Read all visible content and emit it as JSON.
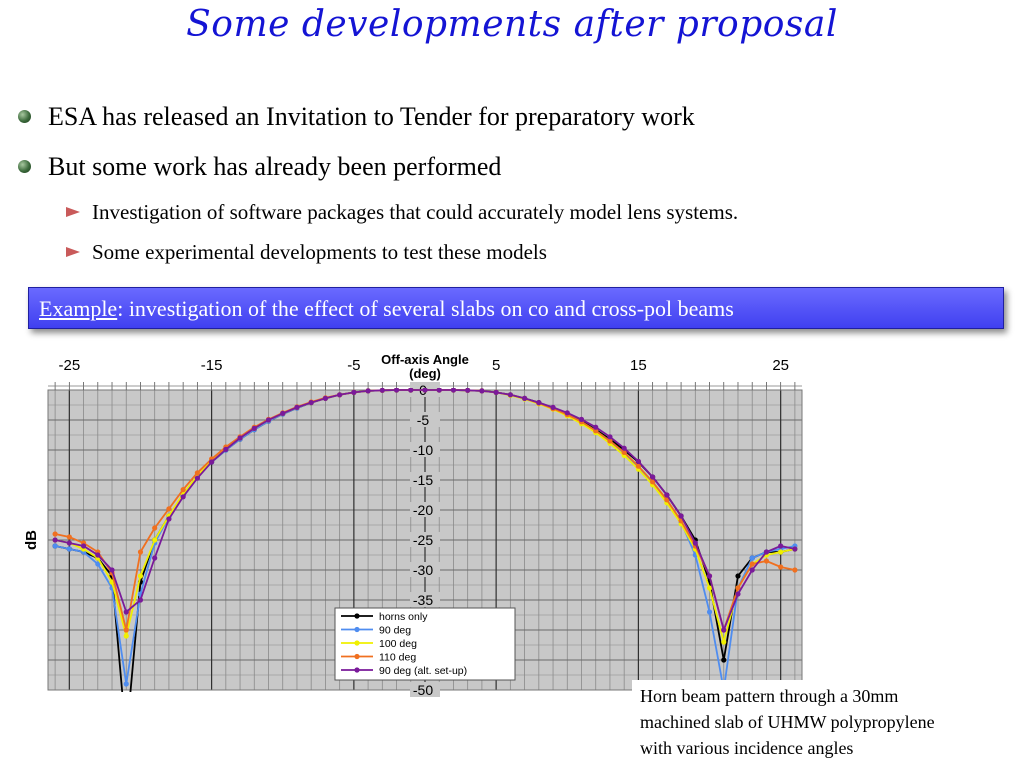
{
  "slide": {
    "title": "Some developments after proposal",
    "bullets": [
      "ESA has released an Invitation to Tender for preparatory work",
      "But some work has already been performed"
    ],
    "sub_bullets": [
      "Investigation of software packages that could accurately model lens systems.",
      "Some experimental developments to test these models"
    ],
    "example": {
      "label": "Example",
      "text": ": investigation of the effect of several slabs on co and cross-pol beams"
    },
    "caption": [
      "Horn beam pattern through a 30mm",
      "machined slab of UHMW polypropylene",
      "with various incidence angles"
    ]
  },
  "colors": {
    "title": "#1414d4",
    "example_box": "#5050f5",
    "bullet": "#3c6a3c",
    "sub_marker": "#c95a5a",
    "plot_bg": "#c8c8c8"
  },
  "chart_data": {
    "type": "line",
    "xlabel": "Off-axis Angle\n(deg)",
    "ylabel": "dB",
    "xlim": [
      -26.5,
      26.5
    ],
    "ylim": [
      -50,
      0
    ],
    "x_ticks": [
      -25,
      -15,
      -5,
      5,
      15,
      25
    ],
    "y_ticks": [
      0,
      -5,
      -10,
      -15,
      -20,
      -25,
      -30,
      -35,
      -40,
      -45,
      -50
    ],
    "grid": true,
    "legend_position": "bottom-center",
    "x": [
      -26,
      -25,
      -24,
      -23,
      -22,
      -21,
      -20,
      -19,
      -18,
      -17,
      -16,
      -15,
      -14,
      -13,
      -12,
      -11,
      -10,
      -9,
      -8,
      -7,
      -6,
      -5,
      -4,
      -3,
      -2,
      -1,
      0,
      1,
      2,
      3,
      4,
      5,
      6,
      7,
      8,
      9,
      10,
      11,
      12,
      13,
      14,
      15,
      16,
      17,
      18,
      19,
      20,
      21,
      22,
      23,
      24,
      25,
      26
    ],
    "series": [
      {
        "name": "horns only",
        "color": "#000000",
        "values": [
          -26,
          -26.5,
          -27,
          -28,
          -31,
          -58,
          -32,
          -25,
          -21,
          -17.5,
          -14.5,
          -12,
          -10,
          -8.2,
          -6.6,
          -5.2,
          -4,
          -3,
          -2.1,
          -1.4,
          -0.8,
          -0.4,
          -0.15,
          -0.05,
          0,
          0,
          0,
          0,
          0,
          -0.05,
          -0.15,
          -0.4,
          -0.8,
          -1.4,
          -2.1,
          -3,
          -4,
          -5.2,
          -6.6,
          -8.2,
          -10,
          -12,
          -14.5,
          -17.5,
          -21,
          -25,
          -32,
          -45,
          -31,
          -28,
          -27,
          -27,
          -26.5
        ]
      },
      {
        "name": "90 deg",
        "color": "#4f8df0",
        "values": [
          -26,
          -26.5,
          -27,
          -29,
          -33,
          -49,
          -34,
          -25.5,
          -21.2,
          -17.5,
          -14.5,
          -12,
          -10,
          -8.2,
          -6.6,
          -5.2,
          -4,
          -3,
          -2.1,
          -1.4,
          -0.8,
          -0.4,
          -0.15,
          -0.05,
          0,
          0,
          0,
          0,
          0,
          -0.05,
          -0.15,
          -0.4,
          -0.8,
          -1.4,
          -2.2,
          -3.1,
          -4.1,
          -5.3,
          -6.8,
          -8.5,
          -10.5,
          -12.8,
          -15.5,
          -18.5,
          -22,
          -27.5,
          -37,
          -50,
          -33,
          -28,
          -27,
          -26.5,
          -26
        ]
      },
      {
        "name": "100 deg",
        "color": "#f0f000",
        "values": [
          -25,
          -25.5,
          -26.5,
          -28,
          -32,
          -41,
          -31,
          -25,
          -21,
          -17.3,
          -14.3,
          -11.8,
          -9.8,
          -8,
          -6.4,
          -5,
          -3.9,
          -2.9,
          -2.1,
          -1.4,
          -0.8,
          -0.4,
          -0.15,
          -0.05,
          0,
          0,
          0,
          0,
          0,
          -0.05,
          -0.15,
          -0.4,
          -0.9,
          -1.5,
          -2.3,
          -3.2,
          -4.3,
          -5.6,
          -7.1,
          -8.9,
          -10.9,
          -13.2,
          -15.8,
          -18.8,
          -22.3,
          -26.5,
          -33,
          -42,
          -33,
          -29,
          -27.5,
          -27,
          -26.5
        ]
      },
      {
        "name": "110 deg",
        "color": "#f07020",
        "values": [
          -24,
          -24.5,
          -25.5,
          -27,
          -30.5,
          -40,
          -27,
          -23,
          -19.8,
          -16.6,
          -13.8,
          -11.5,
          -9.5,
          -7.8,
          -6.2,
          -4.9,
          -3.8,
          -2.8,
          -2,
          -1.3,
          -0.8,
          -0.4,
          -0.15,
          -0.05,
          0,
          0,
          0,
          0,
          0,
          -0.05,
          -0.15,
          -0.4,
          -0.8,
          -1.4,
          -2.2,
          -3.1,
          -4.1,
          -5.3,
          -6.8,
          -8.5,
          -10.4,
          -12.7,
          -15.3,
          -18.3,
          -21.8,
          -26,
          -31,
          -40,
          -33,
          -29,
          -28.5,
          -29.5,
          -30
        ]
      },
      {
        "name": "90 deg (alt. set-up)",
        "color": "#7a1a9a",
        "values": [
          -25,
          -25.5,
          -26,
          -27.5,
          -30,
          -37,
          -35,
          -28,
          -21.5,
          -17.8,
          -14.7,
          -12,
          -9.9,
          -8,
          -6.4,
          -5,
          -3.9,
          -2.9,
          -2.1,
          -1.4,
          -0.8,
          -0.4,
          -0.15,
          -0.05,
          0,
          0,
          0,
          0,
          0,
          -0.05,
          -0.15,
          -0.4,
          -0.8,
          -1.4,
          -2.1,
          -2.9,
          -3.8,
          -4.9,
          -6.2,
          -7.8,
          -9.7,
          -11.9,
          -14.5,
          -17.5,
          -21,
          -25.5,
          -31,
          -40,
          -34,
          -30,
          -27,
          -26,
          -26.5
        ]
      }
    ]
  }
}
